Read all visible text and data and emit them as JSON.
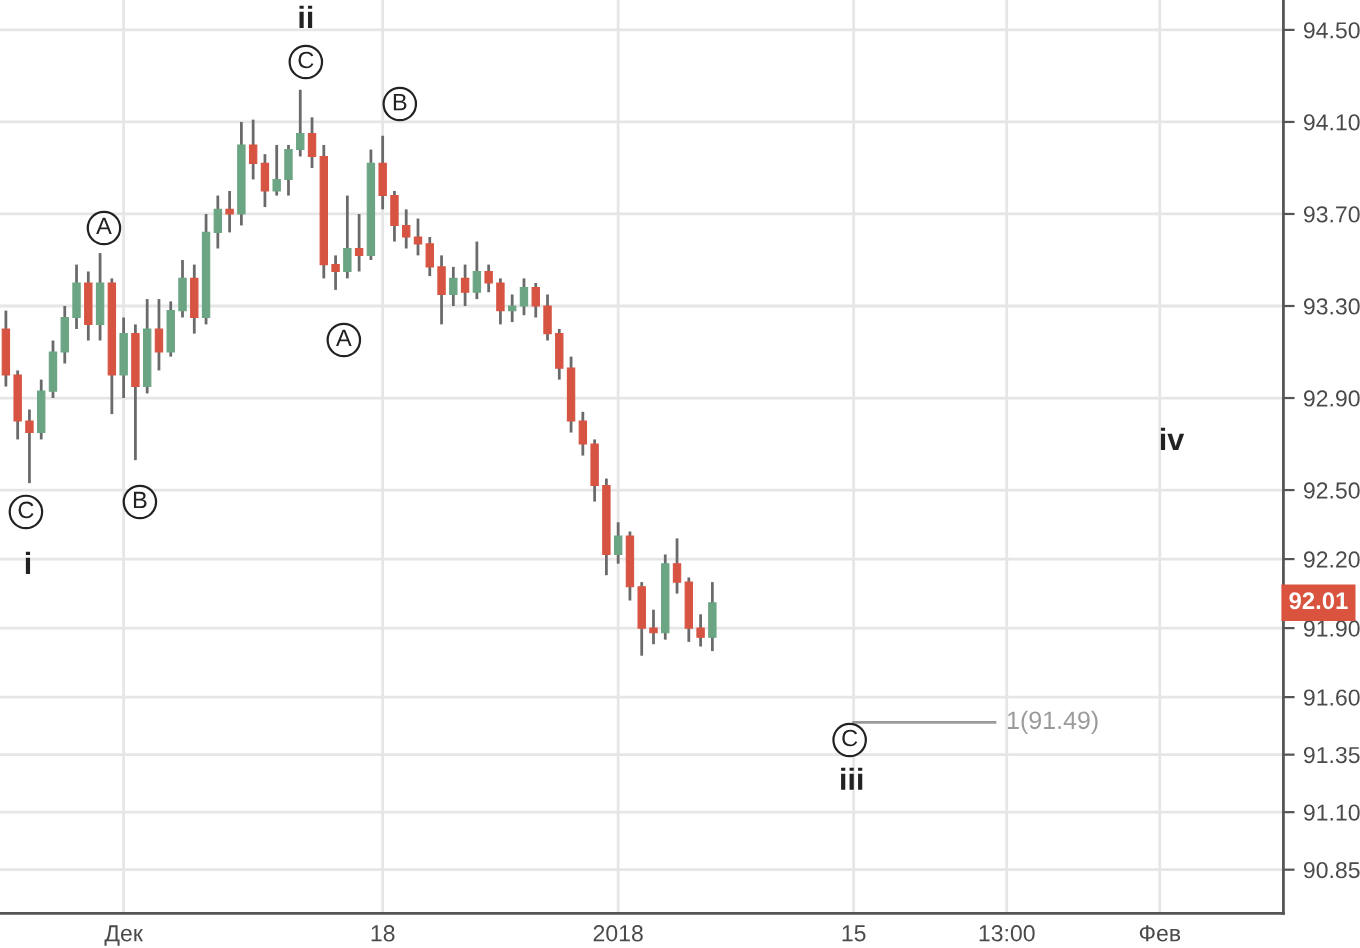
{
  "chart_data": {
    "type": "candlestick",
    "categories": [
      null,
      null,
      null,
      null,
      null,
      null,
      null,
      null,
      null,
      null,
      "Дек",
      null,
      null,
      null,
      null,
      null,
      null,
      null,
      null,
      null,
      null,
      null,
      null,
      null,
      null,
      null,
      null,
      null,
      null,
      null,
      null,
      null,
      "18",
      null,
      null,
      null,
      null,
      null,
      null,
      null,
      null,
      null,
      null,
      null,
      null,
      null,
      null,
      null,
      null,
      null,
      null,
      null,
      "2018",
      null,
      null,
      null,
      null,
      null,
      null,
      null,
      null,
      null,
      null,
      null,
      null,
      null,
      null,
      null,
      null,
      null,
      null,
      null,
      "15",
      null,
      null,
      null,
      null,
      null,
      null,
      null,
      null,
      null,
      null,
      null,
      null,
      "13:00",
      null,
      null,
      null,
      null,
      null,
      null,
      null,
      null,
      null,
      null,
      null,
      null,
      "Фев",
      null,
      null,
      null,
      null,
      null,
      null,
      null,
      null,
      null,
      null
    ],
    "ohlc": [
      [
        93.2,
        93.28,
        92.95,
        93.0
      ],
      [
        93.0,
        93.02,
        92.72,
        92.8
      ],
      [
        92.8,
        92.85,
        92.53,
        92.75
      ],
      [
        92.75,
        92.98,
        92.72,
        92.93
      ],
      [
        92.93,
        93.15,
        92.9,
        93.1
      ],
      [
        93.1,
        93.3,
        93.05,
        93.25
      ],
      [
        93.25,
        93.48,
        93.2,
        93.4
      ],
      [
        93.4,
        93.45,
        93.15,
        93.22
      ],
      [
        93.22,
        93.53,
        93.15,
        93.4
      ],
      [
        93.4,
        93.42,
        92.83,
        93.0
      ],
      [
        93.0,
        93.25,
        92.9,
        93.18
      ],
      [
        93.18,
        93.22,
        92.63,
        92.95
      ],
      [
        92.95,
        93.33,
        92.92,
        93.2
      ],
      [
        93.2,
        93.33,
        93.02,
        93.1
      ],
      [
        93.1,
        93.32,
        93.08,
        93.28
      ],
      [
        93.28,
        93.5,
        93.25,
        93.42
      ],
      [
        93.42,
        93.48,
        93.18,
        93.25
      ],
      [
        93.25,
        93.7,
        93.22,
        93.62
      ],
      [
        93.62,
        93.78,
        93.55,
        93.72
      ],
      [
        93.72,
        93.8,
        93.62,
        93.7
      ],
      [
        93.7,
        94.1,
        93.65,
        94.0
      ],
      [
        94.0,
        94.11,
        93.85,
        93.92
      ],
      [
        93.92,
        93.96,
        93.73,
        93.8
      ],
      [
        93.8,
        94.0,
        93.78,
        93.85
      ],
      [
        93.85,
        94.0,
        93.78,
        93.98
      ],
      [
        93.98,
        94.24,
        93.95,
        94.05
      ],
      [
        94.05,
        94.12,
        93.9,
        93.95
      ],
      [
        93.95,
        94.0,
        93.42,
        93.48
      ],
      [
        93.48,
        93.52,
        93.37,
        93.45
      ],
      [
        93.45,
        93.78,
        93.42,
        93.55
      ],
      [
        93.55,
        93.7,
        93.45,
        93.52
      ],
      [
        93.52,
        93.98,
        93.5,
        93.92
      ],
      [
        93.92,
        94.04,
        93.72,
        93.78
      ],
      [
        93.78,
        93.8,
        93.58,
        93.65
      ],
      [
        93.65,
        93.72,
        93.55,
        93.6
      ],
      [
        93.6,
        93.68,
        93.52,
        93.57
      ],
      [
        93.57,
        93.6,
        93.43,
        93.47
      ],
      [
        93.47,
        93.52,
        93.22,
        93.35
      ],
      [
        93.35,
        93.47,
        93.3,
        93.42
      ],
      [
        93.42,
        93.48,
        93.3,
        93.36
      ],
      [
        93.36,
        93.58,
        93.33,
        93.45
      ],
      [
        93.45,
        93.48,
        93.36,
        93.4
      ],
      [
        93.4,
        93.42,
        93.22,
        93.28
      ],
      [
        93.28,
        93.35,
        93.23,
        93.3
      ],
      [
        93.3,
        93.42,
        93.26,
        93.38
      ],
      [
        93.38,
        93.4,
        93.25,
        93.3
      ],
      [
        93.3,
        93.35,
        93.15,
        93.18
      ],
      [
        93.18,
        93.2,
        92.98,
        93.03
      ],
      [
        93.03,
        93.08,
        92.75,
        92.8
      ],
      [
        92.8,
        92.84,
        92.65,
        92.7
      ],
      [
        92.7,
        92.72,
        92.45,
        92.52
      ],
      [
        92.52,
        92.55,
        92.13,
        92.22
      ],
      [
        92.22,
        92.36,
        92.18,
        92.3
      ],
      [
        92.3,
        92.32,
        92.02,
        92.08
      ],
      [
        92.08,
        92.1,
        91.78,
        91.9
      ],
      [
        91.9,
        91.98,
        91.83,
        91.88
      ],
      [
        91.88,
        92.22,
        91.85,
        92.18
      ],
      [
        92.18,
        92.29,
        92.05,
        92.1
      ],
      [
        92.1,
        92.12,
        91.84,
        91.9
      ],
      [
        91.9,
        91.96,
        91.82,
        91.86
      ],
      [
        91.86,
        92.1,
        91.8,
        92.01
      ],
      null,
      null,
      null,
      null,
      null,
      null,
      null,
      null,
      null,
      null,
      null,
      null,
      null,
      null,
      null,
      null,
      null,
      null,
      null,
      null,
      null,
      null,
      null,
      null,
      null,
      null,
      null,
      null,
      null,
      null,
      null,
      null,
      null,
      null,
      null,
      null,
      null,
      null,
      null,
      null,
      null,
      null,
      null,
      null,
      null,
      null,
      null,
      null
    ],
    "colors": [
      "#d75442",
      "#d75442",
      "#d75442",
      "#6ba583",
      "#6ba583",
      "#6ba583",
      "#6ba583",
      "#d75442",
      "#6ba583",
      "#d75442",
      "#6ba583",
      "#d75442",
      "#6ba583",
      "#d75442",
      "#6ba583",
      "#6ba583",
      "#d75442",
      "#6ba583",
      "#6ba583",
      "#d75442",
      "#6ba583",
      "#d75442",
      "#d75442",
      "#6ba583",
      "#6ba583",
      "#6ba583",
      "#d75442",
      "#d75442",
      "#d75442",
      "#6ba583",
      "#d75442",
      "#6ba583",
      "#d75442",
      "#d75442",
      "#d75442",
      "#d75442",
      "#d75442",
      "#d75442",
      "#6ba583",
      "#d75442",
      "#6ba583",
      "#d75442",
      "#d75442",
      "#6ba583",
      "#6ba583",
      "#d75442",
      "#d75442",
      "#d75442",
      "#d75442",
      "#d75442",
      "#d75442",
      "#d75442",
      "#6ba583",
      "#d75442",
      "#d75442",
      "#d75442",
      "#6ba583",
      "#d75442",
      "#d75442",
      "#d75442",
      "#6ba583",
      null,
      null,
      null,
      null,
      null,
      null,
      null,
      null,
      null,
      null,
      null,
      null,
      null,
      null,
      null,
      null,
      null,
      null,
      null,
      null,
      null,
      null,
      null,
      null,
      null,
      null,
      null,
      null,
      null,
      null,
      null,
      null,
      null,
      null,
      null,
      null,
      null,
      null,
      null,
      null,
      null,
      null,
      null,
      null,
      null,
      null,
      null,
      null
    ],
    "series": [
      {
        "type": "line",
        "name": "1(91.49)",
        "color": "#9a9a9a",
        "values": [
          null,
          null,
          null,
          null,
          null,
          null,
          null,
          null,
          null,
          null,
          null,
          null,
          null,
          null,
          null,
          null,
          null,
          null,
          null,
          null,
          null,
          null,
          null,
          null,
          null,
          null,
          null,
          null,
          null,
          null,
          null,
          null,
          null,
          null,
          null,
          null,
          null,
          null,
          null,
          null,
          null,
          null,
          null,
          null,
          null,
          null,
          null,
          null,
          null,
          null,
          null,
          null,
          null,
          null,
          null,
          null,
          null,
          null,
          null,
          null,
          null,
          null,
          null,
          null,
          null,
          null,
          null,
          null,
          null,
          null,
          null,
          null,
          91.49,
          91.49,
          91.49,
          91.49,
          91.49,
          91.49,
          91.49,
          91.49,
          91.49,
          91.49,
          91.49,
          91.49,
          91.49,
          null,
          null,
          null,
          null,
          null,
          null,
          null,
          null,
          null,
          null,
          null,
          null,
          null,
          null,
          null,
          null,
          null,
          null,
          null,
          null,
          null,
          null,
          null,
          null
        ]
      }
    ],
    "annotations": [
      "C",
      "i",
      "A",
      "B",
      "C",
      "ii",
      "A",
      "B",
      "C",
      "iii",
      "iv",
      {
        "text": "92.01",
        "y": 92.01
      }
    ],
    "ylim": [
      90.66,
      94.63
    ],
    "yticks": [
      90.85,
      {
        "value": 91.1,
        "label": "91.10"
      },
      91.35,
      {
        "value": 91.6,
        "label": "91.60"
      },
      {
        "value": 91.9,
        "label": "91.90"
      },
      {
        "value": 92.2,
        "label": "92.20"
      },
      {
        "value": 92.5,
        "label": "92.50"
      },
      {
        "value": 92.9,
        "label": "92.90"
      },
      {
        "value": 93.3,
        "label": "93.30"
      },
      {
        "value": 93.7,
        "label": "93.70"
      },
      {
        "value": 94.1,
        "label": "94.10"
      },
      {
        "value": 94.5,
        "label": "94.50"
      }
    ],
    "grid": true
  }
}
